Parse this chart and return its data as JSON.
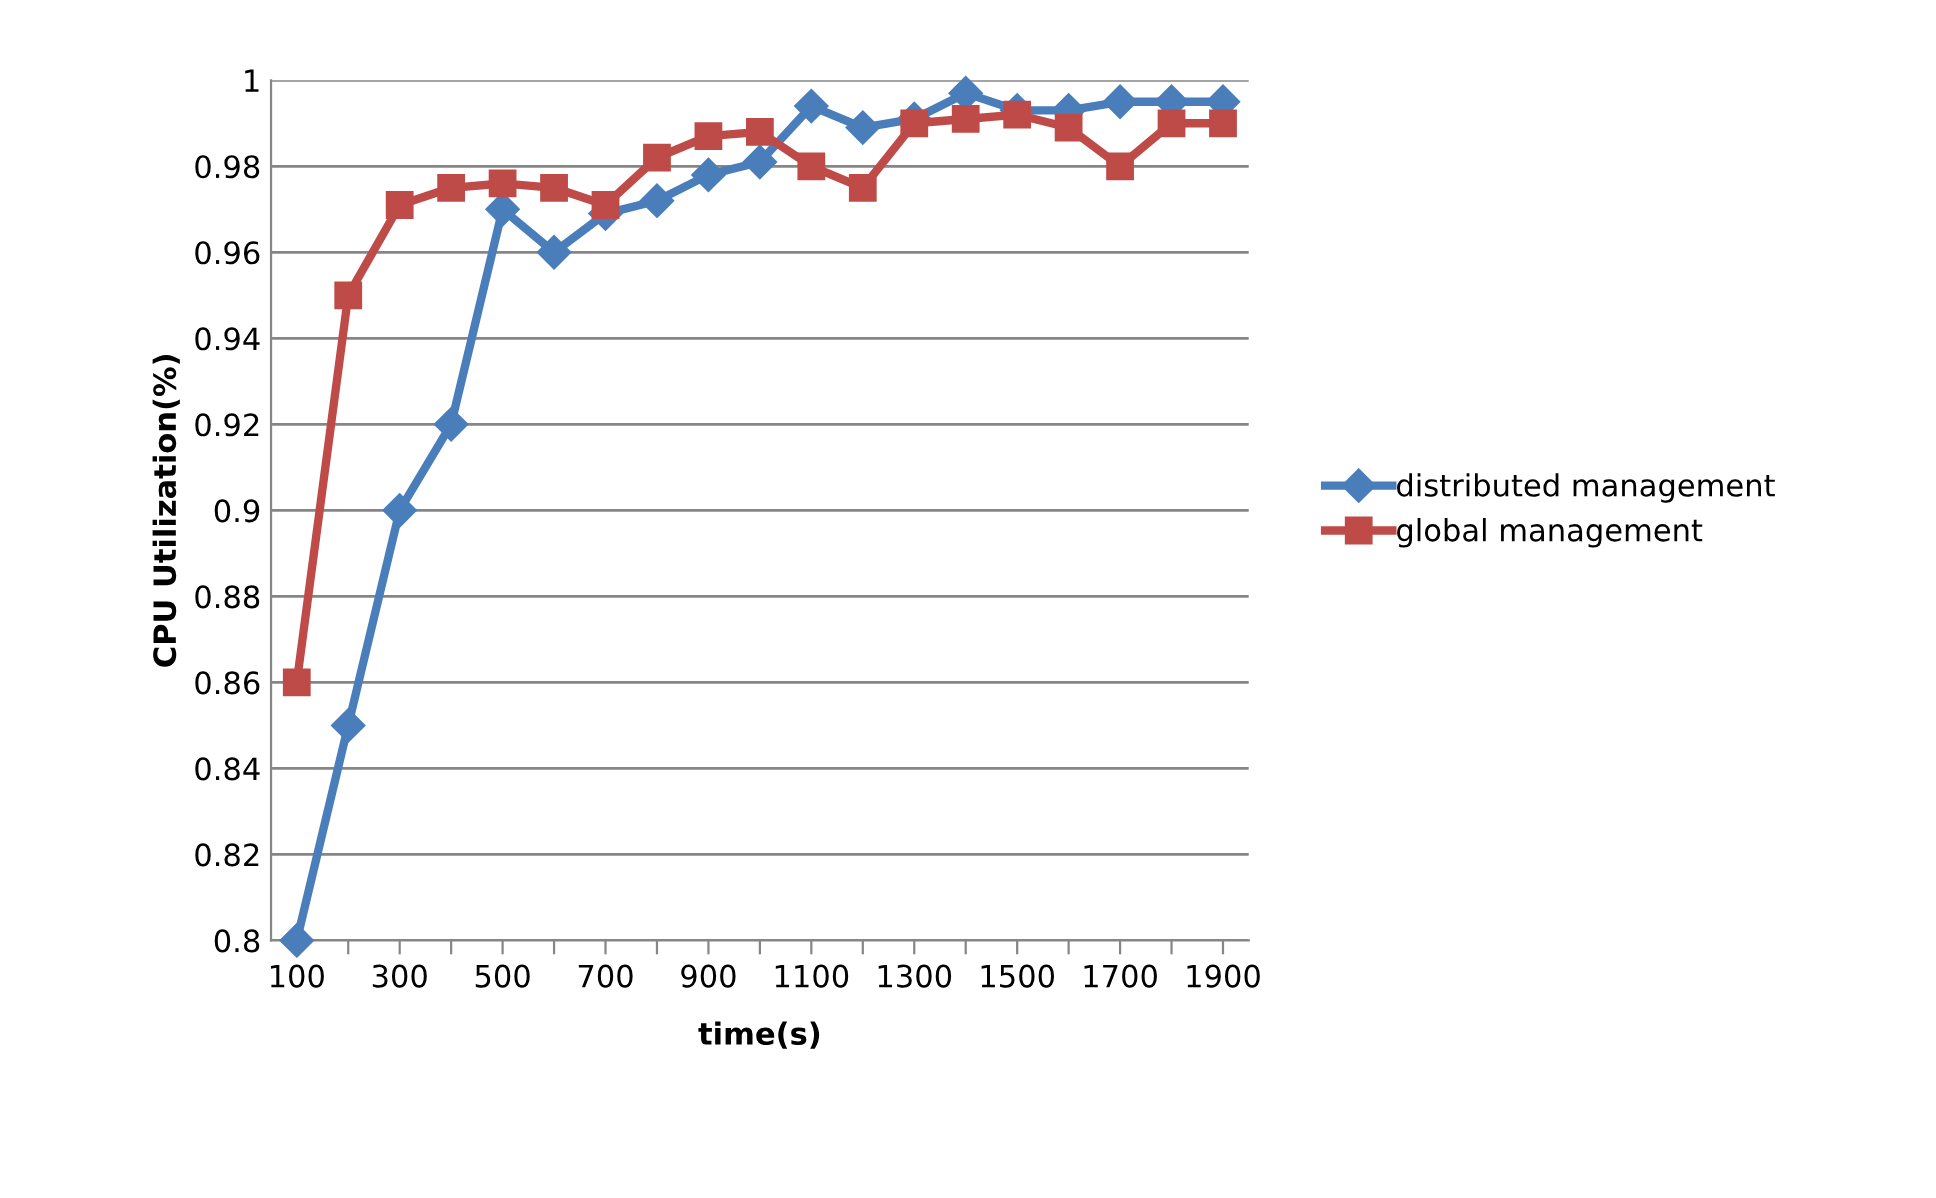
{
  "chart_data": {
    "type": "line",
    "xlabel": "time(s)",
    "ylabel": "CPU Utilization(%)",
    "categories": [
      "100",
      null,
      "300",
      null,
      "500",
      null,
      "700",
      null,
      "900",
      null,
      "1100",
      null,
      "1300",
      null,
      "1500",
      null,
      "1700",
      null,
      "1900"
    ],
    "series": [
      {
        "name": "distributed management",
        "color": "#4a7ebb",
        "marker": "diamond",
        "values": [
          0.8,
          0.85,
          0.9,
          0.92,
          0.97,
          0.96,
          0.969,
          0.972,
          0.978,
          0.981,
          0.994,
          0.989,
          0.991,
          0.997,
          0.993,
          0.993,
          0.995,
          0.995,
          0.995
        ]
      },
      {
        "name": "global management",
        "color": "#be4b48",
        "marker": "square",
        "values": [
          0.86,
          0.95,
          0.971,
          0.975,
          0.976,
          0.975,
          0.971,
          0.982,
          0.987,
          0.988,
          0.98,
          0.975,
          0.99,
          0.991,
          0.992,
          0.989,
          0.98,
          0.99,
          0.99
        ]
      }
    ],
    "ylim": [
      0.8,
      1
    ],
    "yticks": [
      0.8,
      0.82,
      0.84,
      0.86,
      0.88,
      0.9,
      0.92,
      0.94,
      0.96,
      0.98,
      1
    ],
    "grid": "y",
    "legend": "right",
    "line_style": "solid"
  }
}
